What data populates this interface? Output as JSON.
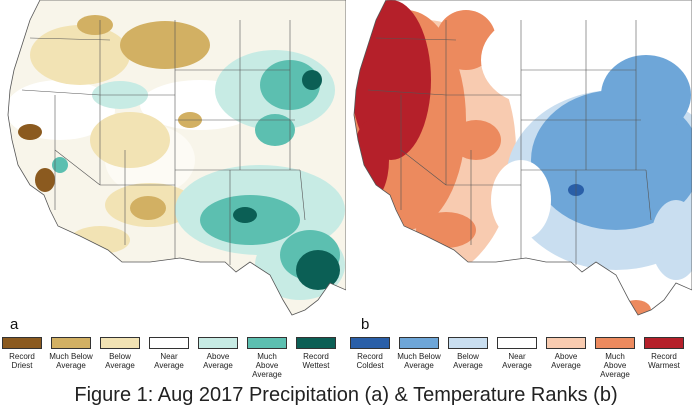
{
  "panels": {
    "a_letter": "a",
    "b_letter": "b"
  },
  "legend_a": [
    {
      "label": "Record Driest",
      "color": "#8b5a1f"
    },
    {
      "label": "Much Below Average",
      "color": "#d2b063"
    },
    {
      "label": "Below Average",
      "color": "#f2e3b4"
    },
    {
      "label": "Near Average",
      "color": "#ffffff"
    },
    {
      "label": "Above Average",
      "color": "#c7ebe4"
    },
    {
      "label": "Much Above Average",
      "color": "#5cbfb0"
    },
    {
      "label": "Record Wettest",
      "color": "#0b5f55"
    }
  ],
  "legend_b": [
    {
      "label": "Record Coldest",
      "color": "#2a5fa8"
    },
    {
      "label": "Much Below Average",
      "color": "#6ea6d8"
    },
    {
      "label": "Below Average",
      "color": "#c9def0"
    },
    {
      "label": "Near Average",
      "color": "#ffffff"
    },
    {
      "label": "Above Average",
      "color": "#f8cbb0"
    },
    {
      "label": "Much Above Average",
      "color": "#ec8a5e"
    },
    {
      "label": "Record Warmest",
      "color": "#b5202a"
    }
  ],
  "caption": "Figure 1: Aug 2017 Precipitation (a) & Temperature Ranks (b)"
}
